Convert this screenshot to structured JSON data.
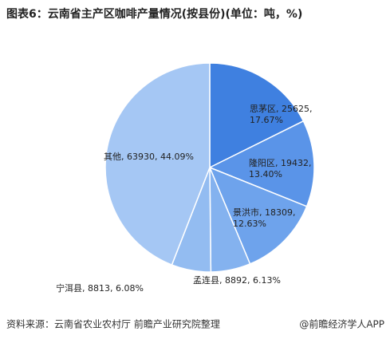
{
  "chart_data": {
    "type": "pie",
    "title": "图表6：云南省主产区咖啡产量情况(按县份)(单位：吨，%)",
    "values": [
      25625,
      19432,
      18309,
      8892,
      8813,
      63930
    ],
    "colors": [
      "#3f80e0",
      "#5a94e8",
      "#6ea3ec",
      "#84b2ef",
      "#93bcf1",
      "#a5c7f4"
    ],
    "labels": [
      [
        "思茅区, 25625,",
        "17.67%"
      ],
      [
        "隆阳区, 19432,",
        "13.40%"
      ],
      [
        "景洪市, 18309,",
        "12.63%"
      ],
      [
        "孟连县, 8892, 6.13%"
      ],
      [
        "宁洱县, 8813, 6.08%"
      ],
      [
        "其他, 63930, 44.09%"
      ]
    ],
    "source": "资料来源：云南省农业农村厅 前瞻产业研究院整理",
    "credit": "@前瞻经济学人APP"
  }
}
